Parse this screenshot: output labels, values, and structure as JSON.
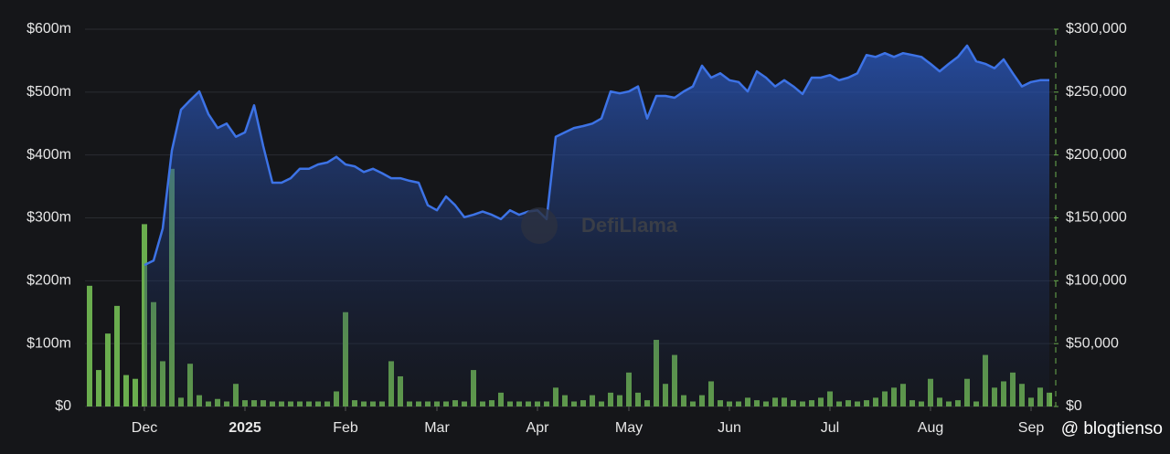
{
  "chart_data": {
    "type": "line",
    "annotations": [
      "DefiLlama",
      "@ blogtienso"
    ],
    "categories": [
      null,
      null,
      null,
      null,
      null,
      null,
      "Dec",
      null,
      null,
      null,
      null,
      null,
      null,
      null,
      null,
      null,
      null,
      "2025",
      null,
      null,
      null,
      null,
      null,
      null,
      null,
      null,
      null,
      null,
      "Feb",
      null,
      null,
      null,
      null,
      null,
      null,
      null,
      null,
      null,
      "Mar",
      null,
      null,
      null,
      null,
      null,
      null,
      null,
      null,
      null,
      null,
      "Apr",
      null,
      null,
      null,
      null,
      null,
      null,
      null,
      null,
      null,
      "May",
      null,
      null,
      null,
      null,
      null,
      null,
      null,
      null,
      null,
      null,
      "Jun",
      null,
      null,
      null,
      null,
      null,
      null,
      null,
      null,
      null,
      null,
      "Jul",
      null,
      null,
      null,
      null,
      null,
      null,
      null,
      null,
      null,
      null,
      "Aug",
      null,
      null,
      null,
      null,
      null,
      null,
      null,
      null,
      null,
      null,
      "Sep",
      null,
      null
    ],
    "series": [
      {
        "type": "area",
        "color": "#3d73e6",
        "values": [
          null,
          null,
          null,
          null,
          null,
          null,
          225,
          232,
          283,
          407,
          472,
          487,
          501,
          465,
          443,
          450,
          429,
          436,
          479,
          414,
          356,
          356,
          363,
          378,
          378,
          385,
          388,
          397,
          385,
          382,
          373,
          378,
          371,
          363,
          363,
          359,
          356,
          320,
          312,
          334,
          320,
          301,
          305,
          310,
          305,
          298,
          312,
          305,
          310,
          312,
          298,
          429,
          436,
          443,
          446,
          450,
          458,
          501,
          498,
          501,
          509,
          458,
          494,
          494,
          491,
          501,
          509,
          542,
          523,
          530,
          519,
          516,
          501,
          533,
          523,
          509,
          519,
          509,
          497,
          523,
          523,
          527,
          519,
          523,
          530,
          559,
          556,
          562,
          556,
          562,
          559,
          556,
          545,
          533,
          545,
          556,
          574,
          549,
          545,
          538,
          552,
          530,
          509,
          516,
          519,
          519
        ]
      },
      {
        "type": "bar",
        "axis": "y2",
        "color": "#6aad4e",
        "values": [
          96000,
          29000,
          58000,
          80000,
          25000,
          22000,
          145000,
          83000,
          36000,
          189000,
          7000,
          34000,
          9000,
          4000,
          6000,
          4000,
          18000,
          5000,
          5000,
          5000,
          4000,
          4000,
          4000,
          4000,
          4000,
          4000,
          4000,
          12000,
          75000,
          5000,
          4000,
          4000,
          4000,
          36000,
          24000,
          4000,
          4000,
          4000,
          4000,
          4000,
          5000,
          4000,
          29000,
          4000,
          5000,
          11000,
          4000,
          4000,
          4000,
          4000,
          4000,
          15000,
          9000,
          4000,
          5000,
          9000,
          4000,
          11000,
          9000,
          27000,
          11000,
          5000,
          53000,
          18000,
          41000,
          9000,
          4000,
          9000,
          20000,
          5000,
          4000,
          4000,
          7000,
          5000,
          4000,
          7000,
          7000,
          5000,
          4000,
          5000,
          7000,
          12000,
          4000,
          5000,
          4000,
          5000,
          7000,
          12000,
          15000,
          18000,
          5000,
          4000,
          22000,
          7000,
          4000,
          5000,
          22000,
          4000,
          41000,
          15000,
          20000,
          27000,
          18000,
          7000,
          15000,
          11000
        ]
      }
    ],
    "ylim": [
      0,
      600
    ],
    "yticks": [
      {
        "value": 0,
        "label": "$0"
      },
      {
        "value": 100,
        "label": "$100m"
      },
      {
        "value": 200,
        "label": "$200m"
      },
      {
        "value": 300,
        "label": "$300m"
      },
      {
        "value": 400,
        "label": "$400m"
      },
      {
        "value": 500,
        "label": "$500m"
      },
      {
        "value": 600,
        "label": "$600m"
      }
    ],
    "y2lim": [
      0,
      300000
    ],
    "y2ticks": [
      {
        "value": 0,
        "label": "$0"
      },
      {
        "value": 50000,
        "label": "$50,000"
      },
      {
        "value": 100000,
        "label": "$100,000"
      },
      {
        "value": 150000,
        "label": "$150,000"
      },
      {
        "value": 200000,
        "label": "$200,000"
      },
      {
        "value": 250000,
        "label": "$250,000"
      },
      {
        "value": 300000,
        "label": "$300,000"
      }
    ],
    "grid": true
  }
}
